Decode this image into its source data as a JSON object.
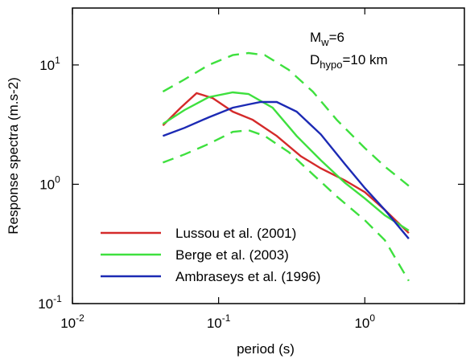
{
  "chart_data": {
    "type": "line",
    "xlabel": "period (s)",
    "ylabel": "Response spectra (m.s-2)",
    "log_x": true,
    "log_y": true,
    "xlim": [
      0.01,
      4.8
    ],
    "ylim": [
      0.1,
      30
    ],
    "xticks": [
      {
        "value": 0.01,
        "label": "10",
        "exponent": "-2"
      },
      {
        "value": 0.1,
        "label": "10",
        "exponent": "-1"
      },
      {
        "value": 1,
        "label": "10",
        "exponent": "0"
      }
    ],
    "yticks": [
      {
        "value": 0.1,
        "label": "10",
        "exponent": "-1"
      },
      {
        "value": 1,
        "label": "10",
        "exponent": "0"
      },
      {
        "value": 10,
        "label": "10",
        "exponent": "1"
      }
    ],
    "annotations": [
      {
        "text": "M",
        "sub": "w",
        "rest": "=6"
      },
      {
        "text": "D",
        "sub": "hypo",
        "rest": "=10 km"
      }
    ],
    "legend": "lower left",
    "series": [
      {
        "name": "Lussou et al. (2001)",
        "color": "#d42a2a",
        "dash": false,
        "x": [
          0.0416,
          0.055,
          0.0707,
          0.091,
          0.125,
          0.171,
          0.25,
          0.365,
          0.5,
          0.73,
          1,
          1.37,
          2.0
        ],
        "values": [
          3.11,
          4.38,
          5.8,
          5.28,
          4.06,
          3.47,
          2.54,
          1.72,
          1.36,
          1.08,
          0.86,
          0.61,
          0.39
        ]
      },
      {
        "name": "Berge et al. (2003)",
        "color": "#3ee03e",
        "dash": false,
        "x": [
          0.0416,
          0.0585,
          0.0855,
          0.125,
          0.16,
          0.234,
          0.342,
          0.5,
          0.73,
          1,
          1.37,
          2.0
        ],
        "values": [
          3.21,
          4.19,
          5.37,
          5.89,
          5.71,
          4.38,
          2.54,
          1.59,
          1.03,
          0.76,
          0.55,
          0.41
        ]
      },
      {
        "name": "Ambraseys et al. (1996)",
        "color": "#1c2ab4",
        "dash": false,
        "x": [
          0.0416,
          0.0585,
          0.0855,
          0.125,
          0.16,
          0.194,
          0.25,
          0.342,
          0.5,
          0.73,
          1,
          1.37,
          2.0
        ],
        "values": [
          2.54,
          2.97,
          3.64,
          4.38,
          4.67,
          4.89,
          4.89,
          4.06,
          2.62,
          1.48,
          0.93,
          0.61,
          0.35
        ]
      },
      {
        "color": "#3ee03e",
        "dash": true,
        "x": [
          0.0416,
          0.0585,
          0.0855,
          0.125,
          0.16,
          0.207,
          0.302,
          0.441,
          0.643,
          1,
          1.37,
          2.0
        ],
        "values": [
          5.98,
          7.56,
          10.0,
          12.1,
          12.6,
          12.1,
          9.1,
          5.98,
          3.47,
          2.01,
          1.41,
          0.97
        ]
      },
      {
        "color": "#3ee03e",
        "dash": true,
        "x": [
          0.0416,
          0.0585,
          0.0855,
          0.125,
          0.16,
          0.207,
          0.302,
          0.441,
          0.643,
          1,
          1.37,
          2.0
        ],
        "values": [
          1.52,
          1.78,
          2.18,
          2.75,
          2.84,
          2.54,
          1.86,
          1.21,
          0.79,
          0.5,
          0.34,
          0.155
        ]
      }
    ]
  }
}
